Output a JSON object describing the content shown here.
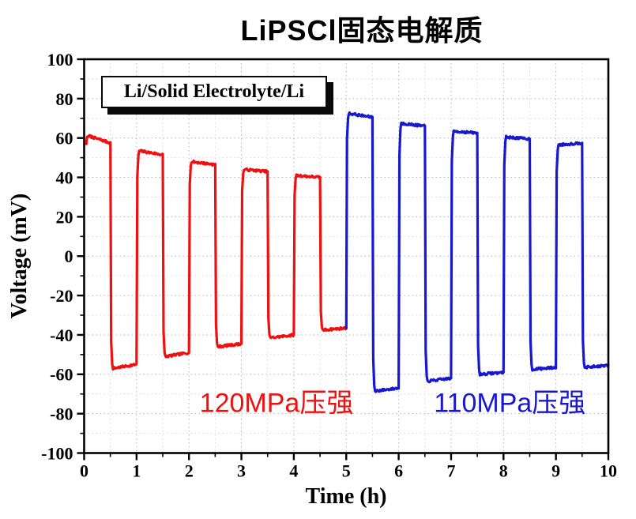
{
  "header": {
    "title": "LiPSCl固态电解质"
  },
  "chart_data": {
    "type": "line",
    "title": "LiPSCl固态电解质",
    "xlabel": "Time (h)",
    "ylabel": "Voltage (mV)",
    "xlim": [
      0,
      10
    ],
    "ylim": [
      -100,
      100
    ],
    "x_ticks": [
      0,
      1,
      2,
      3,
      4,
      5,
      6,
      7,
      8,
      9,
      10
    ],
    "y_ticks": [
      -100,
      -80,
      -60,
      -40,
      -20,
      0,
      20,
      40,
      60,
      80,
      100
    ],
    "x_minor_step": 0.5,
    "y_minor_step": 10,
    "grid": "dotted",
    "legend_box": "Li/Solid Electrolyte/Li",
    "series": [
      {
        "name": "120MPa压强",
        "color": "#ee1111",
        "start_v": 57,
        "plateaus": [
          {
            "t": [
              0.04,
              0.5
            ],
            "v": [
              61,
              57.5
            ]
          },
          {
            "t": [
              0.5,
              1.0
            ],
            "v": [
              -57,
              -55
            ]
          },
          {
            "t": [
              1.0,
              1.5
            ],
            "v": [
              53.5,
              51.5
            ]
          },
          {
            "t": [
              1.5,
              2.0
            ],
            "v": [
              -51,
              -49
            ]
          },
          {
            "t": [
              2.0,
              2.5
            ],
            "v": [
              48,
              46.5
            ]
          },
          {
            "t": [
              2.5,
              3.0
            ],
            "v": [
              -46,
              -44.5
            ]
          },
          {
            "t": [
              3.0,
              3.5
            ],
            "v": [
              44,
              43
            ]
          },
          {
            "t": [
              3.5,
              4.0
            ],
            "v": [
              -41.5,
              -40
            ]
          },
          {
            "t": [
              4.0,
              4.5
            ],
            "v": [
              41,
              40
            ]
          },
          {
            "t": [
              4.5,
              5.0
            ],
            "v": [
              -37.5,
              -36.5
            ]
          }
        ]
      },
      {
        "name": "110MPa压强",
        "color": "#1818cf",
        "start_v": -36.5,
        "plateaus": [
          {
            "t": [
              5.0,
              5.5
            ],
            "v": [
              72.5,
              70.5
            ]
          },
          {
            "t": [
              5.5,
              6.0
            ],
            "v": [
              -68.5,
              -67
            ]
          },
          {
            "t": [
              6.0,
              6.5
            ],
            "v": [
              67.5,
              66
            ]
          },
          {
            "t": [
              6.5,
              7.0
            ],
            "v": [
              -63.5,
              -62
            ]
          },
          {
            "t": [
              7.0,
              7.5
            ],
            "v": [
              63.5,
              62.5
            ]
          },
          {
            "t": [
              7.5,
              8.0
            ],
            "v": [
              -60,
              -59
            ]
          },
          {
            "t": [
              8.0,
              8.5
            ],
            "v": [
              60.5,
              59.5
            ]
          },
          {
            "t": [
              8.5,
              9.0
            ],
            "v": [
              -57.5,
              -56.5
            ]
          },
          {
            "t": [
              9.0,
              9.5
            ],
            "v": [
              56.5,
              57.5
            ]
          },
          {
            "t": [
              9.5,
              10.0
            ],
            "v": [
              -56.5,
              -55.5
            ]
          }
        ]
      }
    ],
    "annotations": [
      {
        "text": "120MPa压强",
        "color": "#ee1111",
        "t": 3.67,
        "v": -73.5
      },
      {
        "text": "110MPa压强",
        "color": "#1818cf",
        "t": 8.12,
        "v": -73.5
      }
    ]
  }
}
